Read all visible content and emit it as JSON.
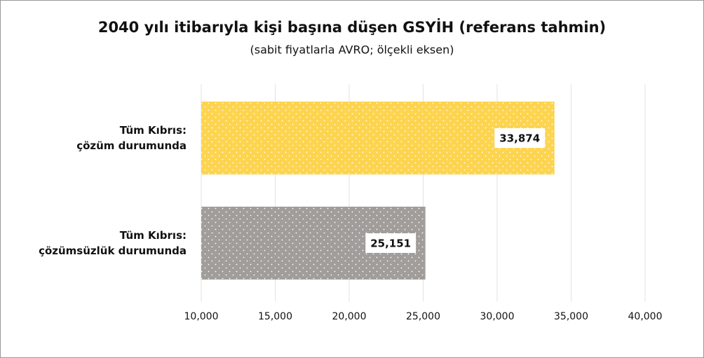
{
  "chart_data": {
    "type": "barh",
    "title": "2040 yılı itibarıyla kişi başına düşen GSYİH (referans tahmin)",
    "subtitle": "(sabit fiyatlarla AVRO; ölçekli eksen)",
    "categories": [
      "Tüm Kıbrıs:\nçözüm durumunda",
      "Tüm Kıbrıs:\nçözümsüzlük durumunda"
    ],
    "values": [
      33874,
      25151
    ],
    "value_labels": [
      "33,874",
      "25,151"
    ],
    "colors": [
      "#fdd44f",
      "#a09d9a"
    ],
    "xlim": [
      10000,
      40000
    ],
    "xticks": [
      {
        "value": 10000,
        "label": "10,000"
      },
      {
        "value": 15000,
        "label": "15,000"
      },
      {
        "value": 20000,
        "label": "20,000"
      },
      {
        "value": 25000,
        "label": "25,000"
      },
      {
        "value": 30000,
        "label": "30,000"
      },
      {
        "value": 35000,
        "label": "35,000"
      },
      {
        "value": 40000,
        "label": "40,000"
      }
    ],
    "grid": true
  }
}
